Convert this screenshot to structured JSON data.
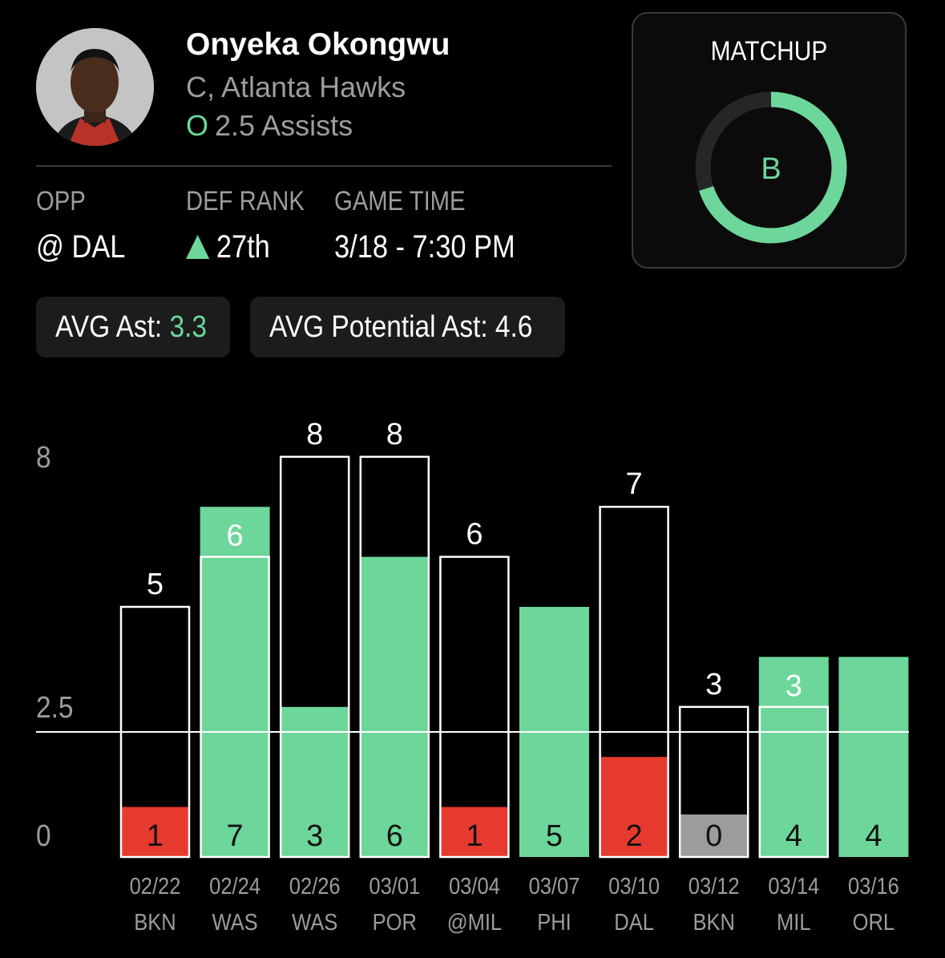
{
  "player": {
    "name": "Onyeka Okongwu",
    "position_team": "C, Atlanta Hawks",
    "prop_marker": "O",
    "prop": "2.5 Assists"
  },
  "info": {
    "opp_label": "OPP",
    "opp_value": "@ DAL",
    "def_rank_label": "DEF RANK",
    "def_rank_value": "27th",
    "game_time_label": "GAME TIME",
    "game_time_value": "3/18 - 7:30 PM"
  },
  "matchup": {
    "title": "MATCHUP",
    "grade": "B",
    "fill_fraction": 0.7
  },
  "averages": {
    "avg_ast_label": "AVG Ast: ",
    "avg_ast_value": "3.3",
    "avg_potential_label": "AVG Potential Ast: ",
    "avg_potential_value": "4.6"
  },
  "colors": {
    "green": "#6dd69a",
    "red": "#e63a2e",
    "gray": "#9c9c9c",
    "text_dim": "#9c9c9c"
  },
  "chart_data": {
    "type": "bar",
    "y_ticks": [
      "0",
      "2.5",
      "8"
    ],
    "ylim": [
      0,
      8
    ],
    "line_value": 2.5,
    "games": [
      {
        "date": "02/22",
        "opp": "BKN",
        "assists": 1,
        "potential": 5
      },
      {
        "date": "02/24",
        "opp": "WAS",
        "assists": 7,
        "potential": 6
      },
      {
        "date": "02/26",
        "opp": "WAS",
        "assists": 3,
        "potential": 8
      },
      {
        "date": "03/01",
        "opp": "POR",
        "assists": 6,
        "potential": 8
      },
      {
        "date": "03/04",
        "opp": "@MIL",
        "assists": 1,
        "potential": 6
      },
      {
        "date": "03/07",
        "opp": "PHI",
        "assists": 5,
        "potential": null
      },
      {
        "date": "03/10",
        "opp": "DAL",
        "assists": 2,
        "potential": 7
      },
      {
        "date": "03/12",
        "opp": "BKN",
        "assists": 0,
        "potential": 3
      },
      {
        "date": "03/14",
        "opp": "MIL",
        "assists": 4,
        "potential": 3
      },
      {
        "date": "03/16",
        "opp": "ORL",
        "assists": 4,
        "potential": null
      }
    ]
  }
}
